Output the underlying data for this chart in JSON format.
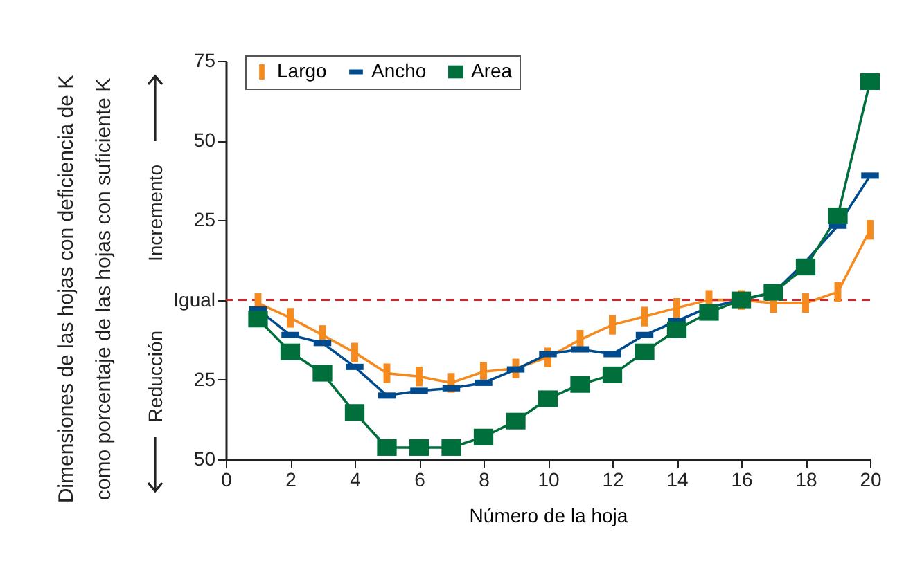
{
  "chart_data": {
    "type": "line",
    "xlabel": "Número de la hoja",
    "annotations": [
      "Incremento",
      "Reducción",
      "Dimensiones de las hojas con deficiencia de K",
      "como porcentaje de las hojas con suficiente K"
    ],
    "x": [
      1,
      2,
      3,
      4,
      5,
      6,
      7,
      8,
      9,
      10,
      11,
      12,
      13,
      14,
      15,
      16,
      17,
      18,
      19,
      20
    ],
    "series": [
      {
        "name": "Largo",
        "color": "#f58a1f",
        "marker": "square",
        "values": [
          -1,
          -5.6,
          -11,
          -16.5,
          -23,
          -24,
          -26,
          -22.5,
          -21.5,
          -18,
          -12.5,
          -7.8,
          -5.2,
          -2.5,
          0,
          0,
          -1,
          -1,
          2.5,
          22
        ]
      },
      {
        "name": "Ancho",
        "color": "#004b8d",
        "marker": "square",
        "values": [
          -3,
          -11,
          -13.5,
          -21,
          -30,
          -28.5,
          -27.7,
          -26,
          -21.8,
          -17,
          -15.5,
          -17,
          -11,
          -6.6,
          -2.3,
          0,
          2.2,
          12,
          23.3,
          39
        ]
      },
      {
        "name": "Area",
        "color": "#006f3c",
        "marker": "square",
        "values": [
          -6,
          -16.3,
          -23,
          -35.3,
          -46.3,
          -46.3,
          -46.3,
          -43,
          -38,
          -31,
          -26.5,
          -23.5,
          -16.3,
          -9.4,
          -3.9,
          0,
          2.4,
          10.3,
          26.4,
          68.5
        ]
      }
    ],
    "xlim": [
      0,
      20
    ],
    "xticks": [
      0,
      2,
      4,
      6,
      8,
      10,
      12,
      14,
      16,
      18,
      20
    ],
    "ylim": [
      -50,
      75
    ],
    "yticks": [
      {
        "value": -50,
        "label": "50"
      },
      {
        "value": -25,
        "label": "25"
      },
      {
        "value": 0,
        "label": "Igual"
      },
      25,
      50,
      75
    ],
    "ref_lines": [
      {
        "axis": "y",
        "value": 0,
        "color": "#d9232a",
        "line_style": "dashed"
      }
    ],
    "legend": "top left",
    "grid": false
  }
}
